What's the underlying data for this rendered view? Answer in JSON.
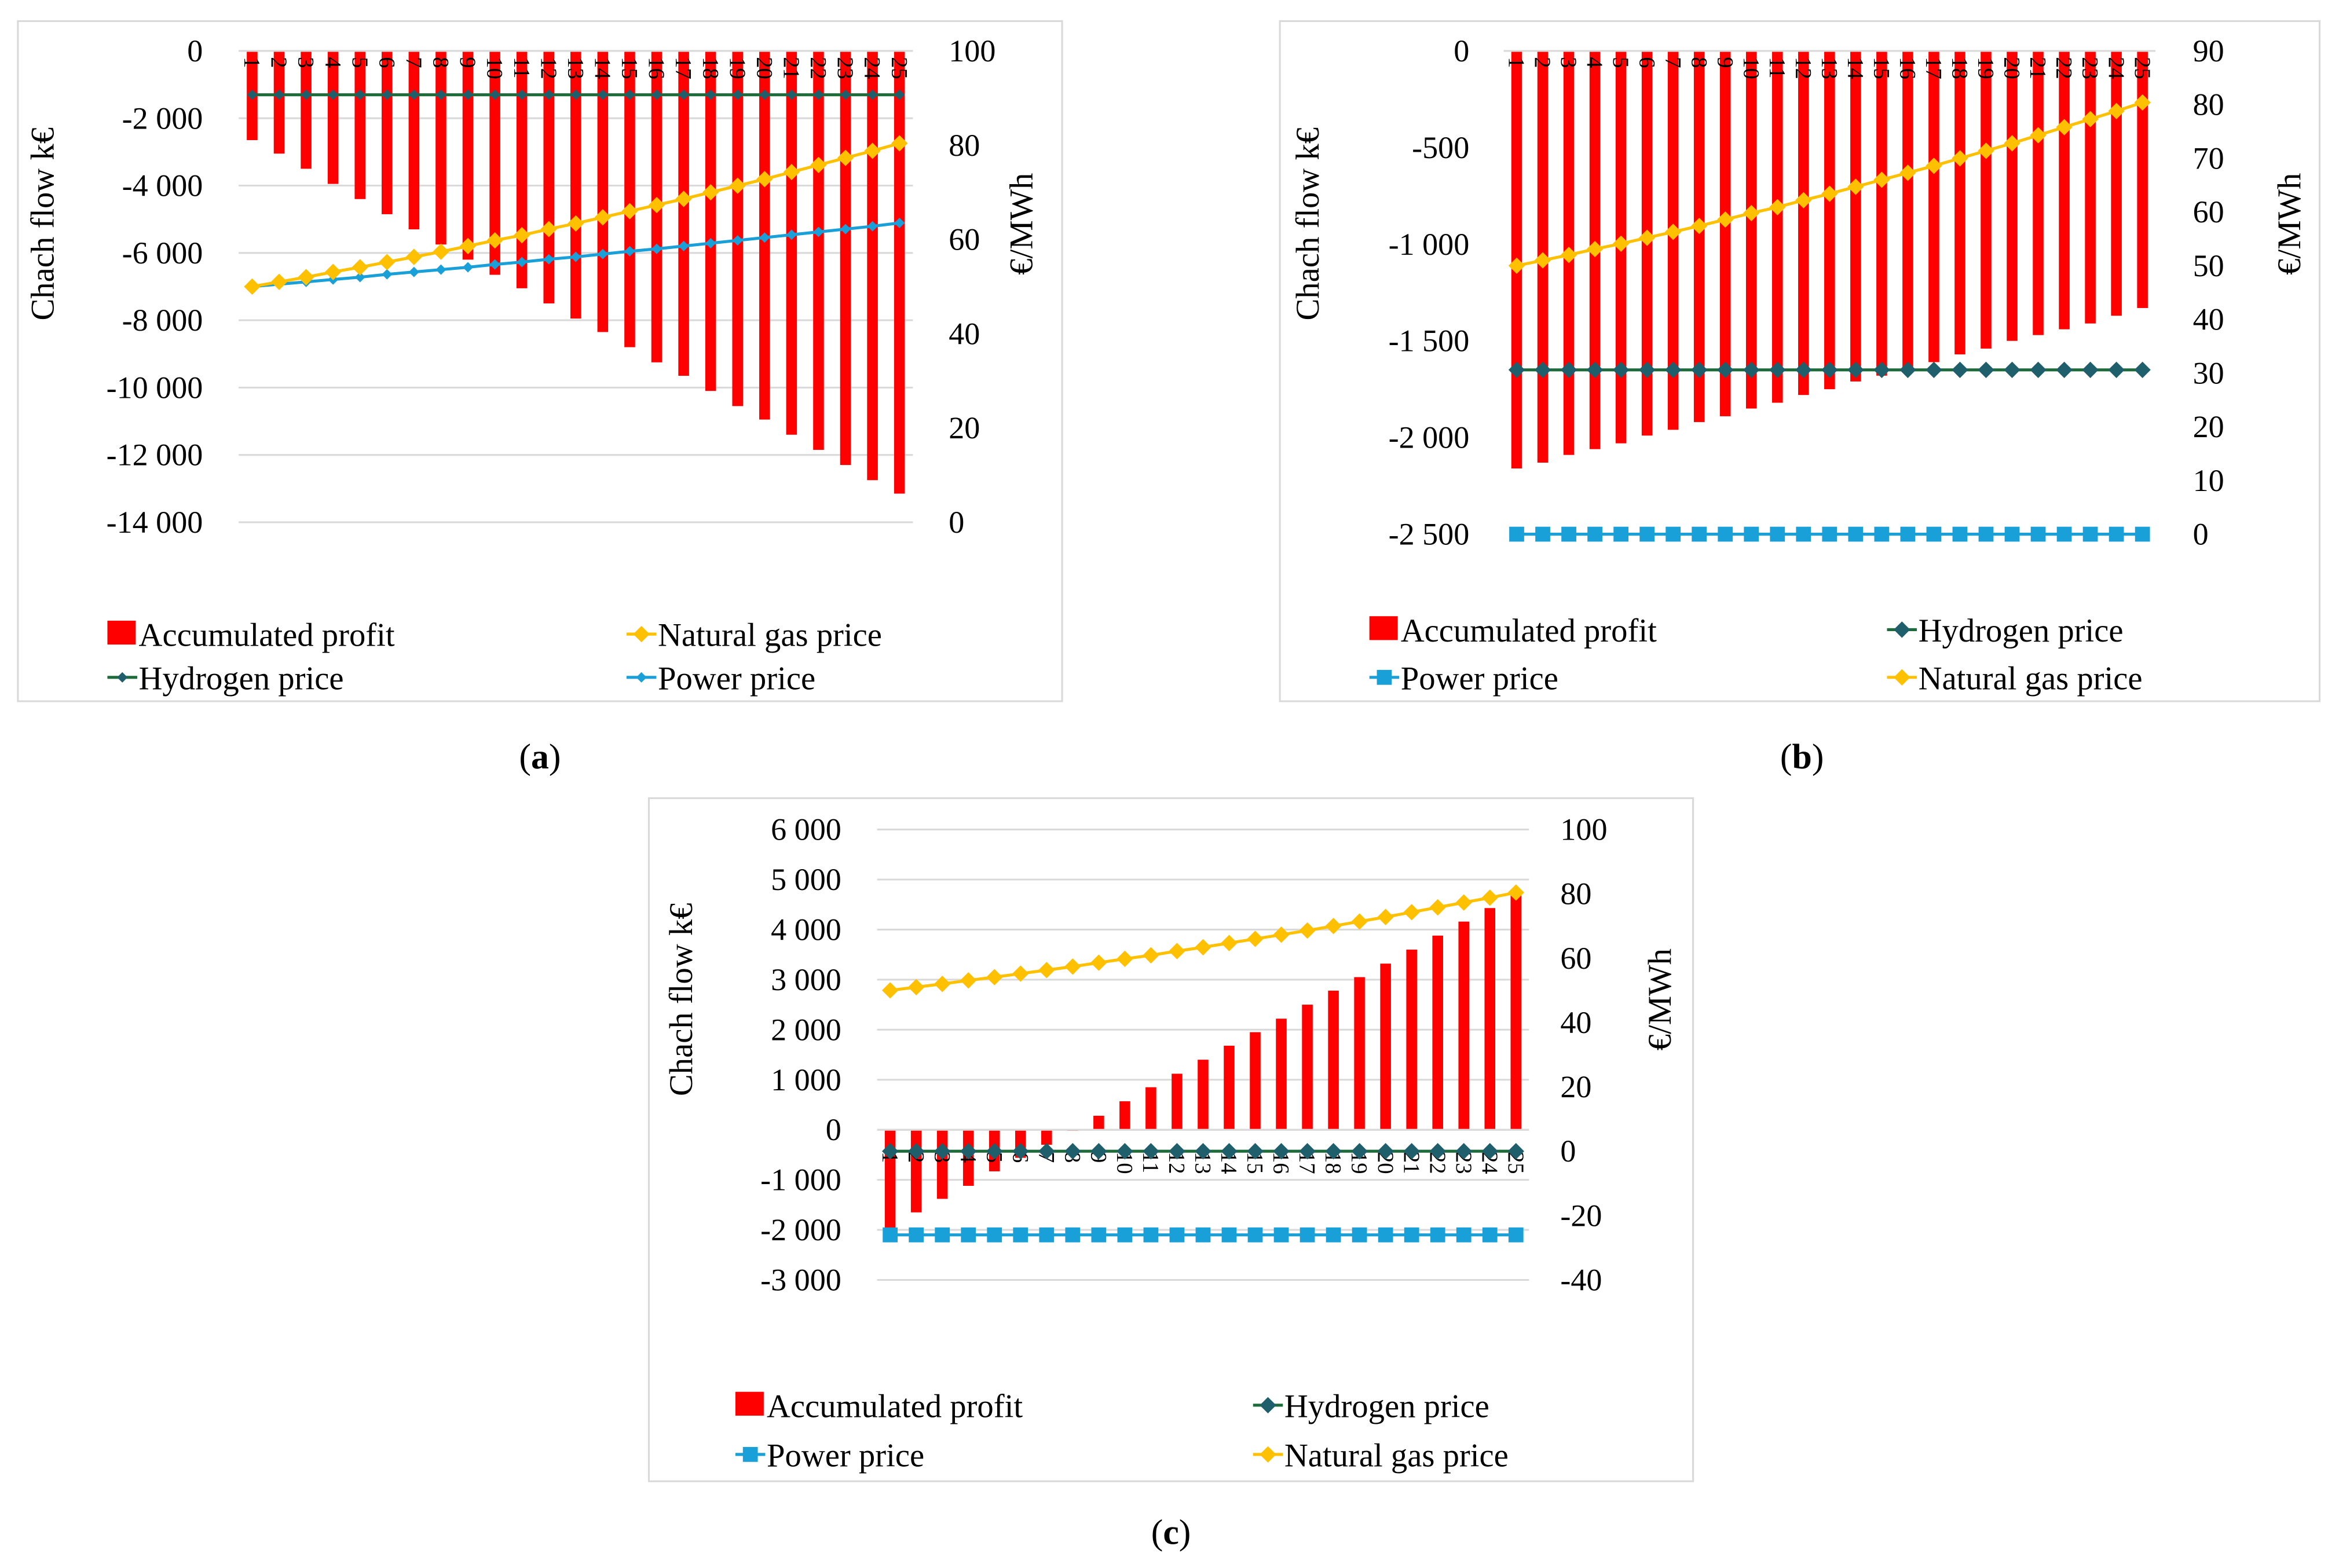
{
  "colors": {
    "profit": "#ff0000",
    "hydrogen": "#1e6b3a",
    "hydrogen_marker": "#1f5f6b",
    "power": "#1aa0d8",
    "gas": "#ffc000"
  },
  "chart_data": [
    {
      "type": "bar+line",
      "caption": {
        "open": "(",
        "letter": "a",
        "close": ")"
      },
      "categories": [
        "1",
        "2",
        "3",
        "4",
        "5",
        "6",
        "7",
        "8",
        "9",
        "10",
        "11",
        "12",
        "13",
        "14",
        "15",
        "16",
        "17",
        "18",
        "19",
        "20",
        "21",
        "22",
        "23",
        "24",
        "25"
      ],
      "ylabel": "Chach flow k€",
      "y2label": "€/MWh",
      "ylim": [
        -14000,
        0
      ],
      "y2lim": [
        0,
        100
      ],
      "left_ticks": [
        0,
        -2000,
        -4000,
        -6000,
        -8000,
        -10000,
        -12000,
        -14000
      ],
      "left_tick_labels": [
        "0",
        "-2 000",
        "-4 000",
        "-6 000",
        "-8 000",
        "-10 000",
        "-12 000",
        "-14 000"
      ],
      "right_ticks": [
        100,
        80,
        60,
        40,
        20,
        0
      ],
      "right_tick_labels": [
        "100",
        "80",
        "60",
        "40",
        "20",
        "0"
      ],
      "grid": true,
      "series": [
        {
          "name": "Accumulated profit",
          "kind": "bar",
          "axis": "left",
          "marker": "bar",
          "color_key": "profit",
          "values": [
            -2650,
            -3050,
            -3500,
            -3950,
            -4400,
            -4850,
            -5300,
            -5750,
            -6200,
            -6650,
            -7050,
            -7500,
            -7950,
            -8350,
            -8800,
            -9250,
            -9650,
            -10100,
            -10550,
            -10950,
            -11400,
            -11850,
            -12300,
            -12750,
            -13150
          ]
        },
        {
          "name": "Hydrogen price",
          "kind": "line",
          "axis": "right",
          "marker": "diamond-small",
          "color_key": "hydrogen",
          "values": [
            90.7,
            90.7,
            90.7,
            90.7,
            90.7,
            90.7,
            90.7,
            90.7,
            90.7,
            90.7,
            90.7,
            90.7,
            90.7,
            90.7,
            90.7,
            90.7,
            90.7,
            90.7,
            90.7,
            90.7,
            90.7,
            90.7,
            90.7,
            90.7,
            90.7
          ]
        },
        {
          "name": "Power price",
          "kind": "line",
          "axis": "right",
          "marker": "diamond-small",
          "color_key": "power",
          "values": [
            50.0,
            50.5,
            51.0,
            51.5,
            52.0,
            52.6,
            53.1,
            53.6,
            54.1,
            54.7,
            55.2,
            55.8,
            56.3,
            56.9,
            57.5,
            58.0,
            58.6,
            59.2,
            59.8,
            60.4,
            61.0,
            61.6,
            62.2,
            62.8,
            63.5
          ]
        },
        {
          "name": "Natural gas price",
          "kind": "line",
          "axis": "right",
          "marker": "diamond",
          "color_key": "gas",
          "values": [
            50.0,
            51.0,
            52.0,
            53.1,
            54.1,
            55.2,
            56.3,
            57.4,
            58.6,
            59.8,
            60.9,
            62.2,
            63.4,
            64.7,
            66.0,
            67.3,
            68.6,
            70.0,
            71.4,
            72.8,
            74.3,
            75.8,
            77.3,
            78.8,
            80.4
          ]
        }
      ],
      "legend": [
        "Accumulated profit",
        "Natural gas price",
        "Hydrogen price",
        "Power price"
      ]
    },
    {
      "type": "bar+line",
      "caption": {
        "open": "(",
        "letter": "b",
        "close": ")"
      },
      "categories": [
        "1",
        "2",
        "3",
        "4",
        "5",
        "6",
        "7",
        "8",
        "9",
        "10",
        "11",
        "12",
        "13",
        "14",
        "15",
        "16",
        "17",
        "18",
        "19",
        "20",
        "21",
        "22",
        "23",
        "24",
        "25"
      ],
      "ylabel": "Chach flow k€",
      "y2label": "€/MWh",
      "ylim": [
        -2500,
        0
      ],
      "y2lim": [
        0,
        90
      ],
      "left_ticks": [
        0,
        -500,
        -1000,
        -1500,
        -2000,
        -2500
      ],
      "left_tick_labels": [
        "0",
        "-500",
        "-1 000",
        "-1 500",
        "-2 000",
        "-2 500"
      ],
      "right_ticks": [
        90,
        80,
        70,
        60,
        50,
        40,
        30,
        20,
        10,
        0
      ],
      "right_tick_labels": [
        "90",
        "80",
        "70",
        "60",
        "50",
        "40",
        "30",
        "20",
        "10",
        "0"
      ],
      "grid": false,
      "series": [
        {
          "name": "Accumulated profit",
          "kind": "bar",
          "axis": "left",
          "marker": "bar",
          "color_key": "profit",
          "values": [
            -2160,
            -2130,
            -2090,
            -2060,
            -2030,
            -1990,
            -1960,
            -1920,
            -1890,
            -1850,
            -1820,
            -1780,
            -1750,
            -1710,
            -1680,
            -1640,
            -1610,
            -1570,
            -1540,
            -1500,
            -1470,
            -1440,
            -1410,
            -1370,
            -1330
          ]
        },
        {
          "name": "Hydrogen price",
          "kind": "line",
          "axis": "right",
          "marker": "diamond",
          "color_key": "hydrogen",
          "values": [
            30.6,
            30.6,
            30.6,
            30.6,
            30.6,
            30.6,
            30.6,
            30.6,
            30.6,
            30.6,
            30.6,
            30.6,
            30.6,
            30.6,
            30.6,
            30.6,
            30.6,
            30.6,
            30.6,
            30.6,
            30.6,
            30.6,
            30.6,
            30.6,
            30.6
          ]
        },
        {
          "name": "Power price",
          "kind": "line",
          "axis": "right",
          "marker": "square",
          "color_key": "power",
          "values": [
            0,
            0,
            0,
            0,
            0,
            0,
            0,
            0,
            0,
            0,
            0,
            0,
            0,
            0,
            0,
            0,
            0,
            0,
            0,
            0,
            0,
            0,
            0,
            0,
            0
          ]
        },
        {
          "name": "Natural gas price",
          "kind": "line",
          "axis": "right",
          "marker": "diamond",
          "color_key": "gas",
          "values": [
            50.0,
            51.0,
            52.0,
            53.1,
            54.1,
            55.2,
            56.3,
            57.4,
            58.6,
            59.8,
            60.9,
            62.2,
            63.4,
            64.7,
            66.0,
            67.3,
            68.6,
            70.0,
            71.4,
            72.8,
            74.3,
            75.8,
            77.3,
            78.8,
            80.4
          ]
        }
      ],
      "legend": [
        "Accumulated profit",
        "Hydrogen price",
        "Power price",
        "Natural gas price"
      ]
    },
    {
      "type": "bar+line",
      "caption": {
        "open": "(",
        "letter": "c",
        "close": ")"
      },
      "categories": [
        "1",
        "2",
        "3",
        "4",
        "5",
        "6",
        "7",
        "8",
        "9",
        "10",
        "11",
        "12",
        "13",
        "14",
        "15",
        "16",
        "17",
        "18",
        "19",
        "20",
        "21",
        "22",
        "23",
        "24",
        "25"
      ],
      "ylabel": "Chach flow k€",
      "y2label": "€/MWh",
      "ylim": [
        -3000,
        6000
      ],
      "y2lim": [
        -40,
        100
      ],
      "left_ticks": [
        6000,
        5000,
        4000,
        3000,
        2000,
        1000,
        0,
        -1000,
        -2000,
        -3000
      ],
      "left_tick_labels": [
        "6 000",
        "5 000",
        "4 000",
        "3 000",
        "2 000",
        "1 000",
        "0",
        "-1 000",
        "-2 000",
        "-3 000"
      ],
      "right_ticks": [
        100,
        80,
        60,
        40,
        20,
        0,
        -20,
        -40
      ],
      "right_tick_labels": [
        "100",
        "80",
        "60",
        "40",
        "20",
        "0",
        "-20",
        "-40"
      ],
      "grid": true,
      "series": [
        {
          "name": "Accumulated profit",
          "kind": "bar",
          "axis": "left",
          "marker": "bar",
          "color_key": "profit",
          "values": [
            -2000,
            -1650,
            -1380,
            -1120,
            -830,
            -560,
            -300,
            -20,
            280,
            570,
            850,
            1120,
            1400,
            1680,
            1950,
            2220,
            2500,
            2780,
            3050,
            3320,
            3600,
            3880,
            4160,
            4430,
            4720
          ]
        },
        {
          "name": "Hydrogen price",
          "kind": "line",
          "axis": "right",
          "marker": "diamond",
          "color_key": "hydrogen",
          "values": [
            0,
            0,
            0,
            0,
            0,
            0,
            0,
            0,
            0,
            0,
            0,
            0,
            0,
            0,
            0,
            0,
            0,
            0,
            0,
            0,
            0,
            0,
            0,
            0,
            0
          ]
        },
        {
          "name": "Power price",
          "kind": "line",
          "axis": "right",
          "marker": "square",
          "color_key": "power",
          "values": [
            -26,
            -26,
            -26,
            -26,
            -26,
            -26,
            -26,
            -26,
            -26,
            -26,
            -26,
            -26,
            -26,
            -26,
            -26,
            -26,
            -26,
            -26,
            -26,
            -26,
            -26,
            -26,
            -26,
            -26,
            -26
          ]
        },
        {
          "name": "Natural gas price",
          "kind": "line",
          "axis": "right",
          "marker": "diamond",
          "color_key": "gas",
          "values": [
            50.0,
            51.0,
            52.0,
            53.1,
            54.1,
            55.2,
            56.3,
            57.4,
            58.6,
            59.8,
            60.9,
            62.2,
            63.4,
            64.7,
            66.0,
            67.3,
            68.6,
            70.0,
            71.4,
            72.8,
            74.3,
            75.8,
            77.3,
            78.8,
            80.4
          ]
        }
      ],
      "legend": [
        "Accumulated profit",
        "Hydrogen price",
        "Power price",
        "Natural gas price"
      ]
    }
  ]
}
